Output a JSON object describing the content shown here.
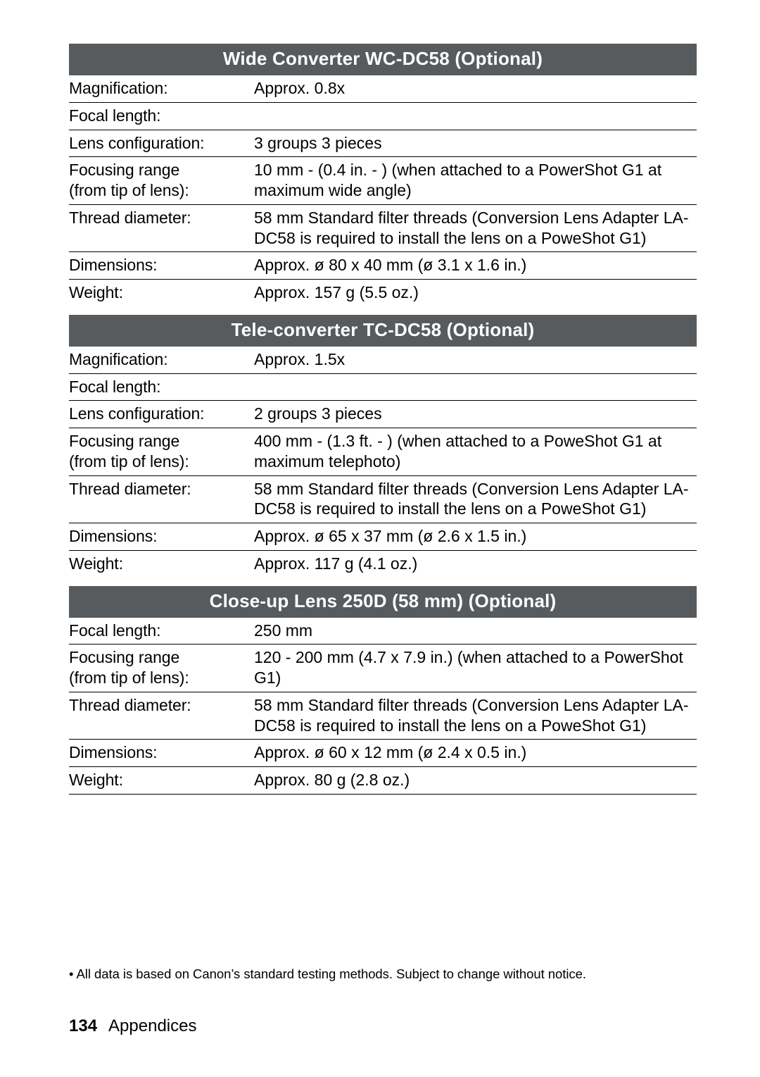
{
  "sections": [
    {
      "title": "Wide Converter WC-DC58 (Optional)",
      "rows": [
        {
          "label": "Magnification:",
          "value": "Approx. 0.8x"
        },
        {
          "label": "Focal length:",
          "value": ""
        },
        {
          "label": "Lens configuration:",
          "value": "3 groups 3 pieces"
        },
        {
          "label": "Focusing range\n(from tip of lens):",
          "value": " 10 mm -     (0.4 in. -    ) (when attached to a PowerShot G1 at maximum wide angle)"
        },
        {
          "label": "Thread diameter:",
          "value": "58 mm Standard filter threads (Conversion Lens Adapter LA-DC58 is required to install the lens on a PoweShot G1)"
        },
        {
          "label": "Dimensions:",
          "value": "Approx. ø 80 x 40 mm (ø 3.1 x 1.6 in.)"
        },
        {
          "label": "Weight:",
          "value": "Approx. 157 g (5.5 oz.)",
          "last": true
        }
      ]
    },
    {
      "title": "Tele-converter TC-DC58 (Optional)",
      "rows": [
        {
          "label": "Magnification:",
          "value": "Approx. 1.5x"
        },
        {
          "label": "Focal length:",
          "value": ""
        },
        {
          "label": "Lens configuration:",
          "value": "2 groups 3 pieces"
        },
        {
          "label": "Focusing range\n(from tip of lens):",
          "value": " 400 mm -     (1.3 ft. -    ) (when attached to a PoweShot G1 at maximum telephoto)"
        },
        {
          "label": "Thread diameter:",
          "value": "58 mm Standard filter threads (Conversion Lens Adapter LA-DC58 is required to install the lens on a PoweShot G1)"
        },
        {
          "label": "Dimensions:",
          "value": "Approx. ø 65 x 37 mm (ø 2.6 x 1.5 in.)"
        },
        {
          "label": "Weight:",
          "value": "Approx. 117 g (4.1 oz.)",
          "last": true
        }
      ]
    },
    {
      "title": "Close-up Lens 250D (58 mm) (Optional)",
      "rows": [
        {
          "label": "Focal length:",
          "value": "250 mm"
        },
        {
          "label": "Focusing range\n(from tip of lens):",
          "value": " 120 - 200 mm (4.7 x 7.9 in.) (when attached to a PowerShot G1)"
        },
        {
          "label": "Thread diameter:",
          "value": "58 mm Standard filter threads (Conversion Lens Adapter LA-DC58 is required to install the lens on a PoweShot G1)"
        },
        {
          "label": "Dimensions:",
          "value": "Approx. ø 60 x 12 mm (ø 2.4 x 0.5 in.)"
        },
        {
          "label": "Weight:",
          "value": "Approx. 80 g (2.8 oz.)"
        }
      ]
    }
  ],
  "footnote": "• All data is based on Canon’s standard testing methods. Subject to change without notice.",
  "footer": {
    "page_number": "134",
    "section": "Appendices"
  }
}
